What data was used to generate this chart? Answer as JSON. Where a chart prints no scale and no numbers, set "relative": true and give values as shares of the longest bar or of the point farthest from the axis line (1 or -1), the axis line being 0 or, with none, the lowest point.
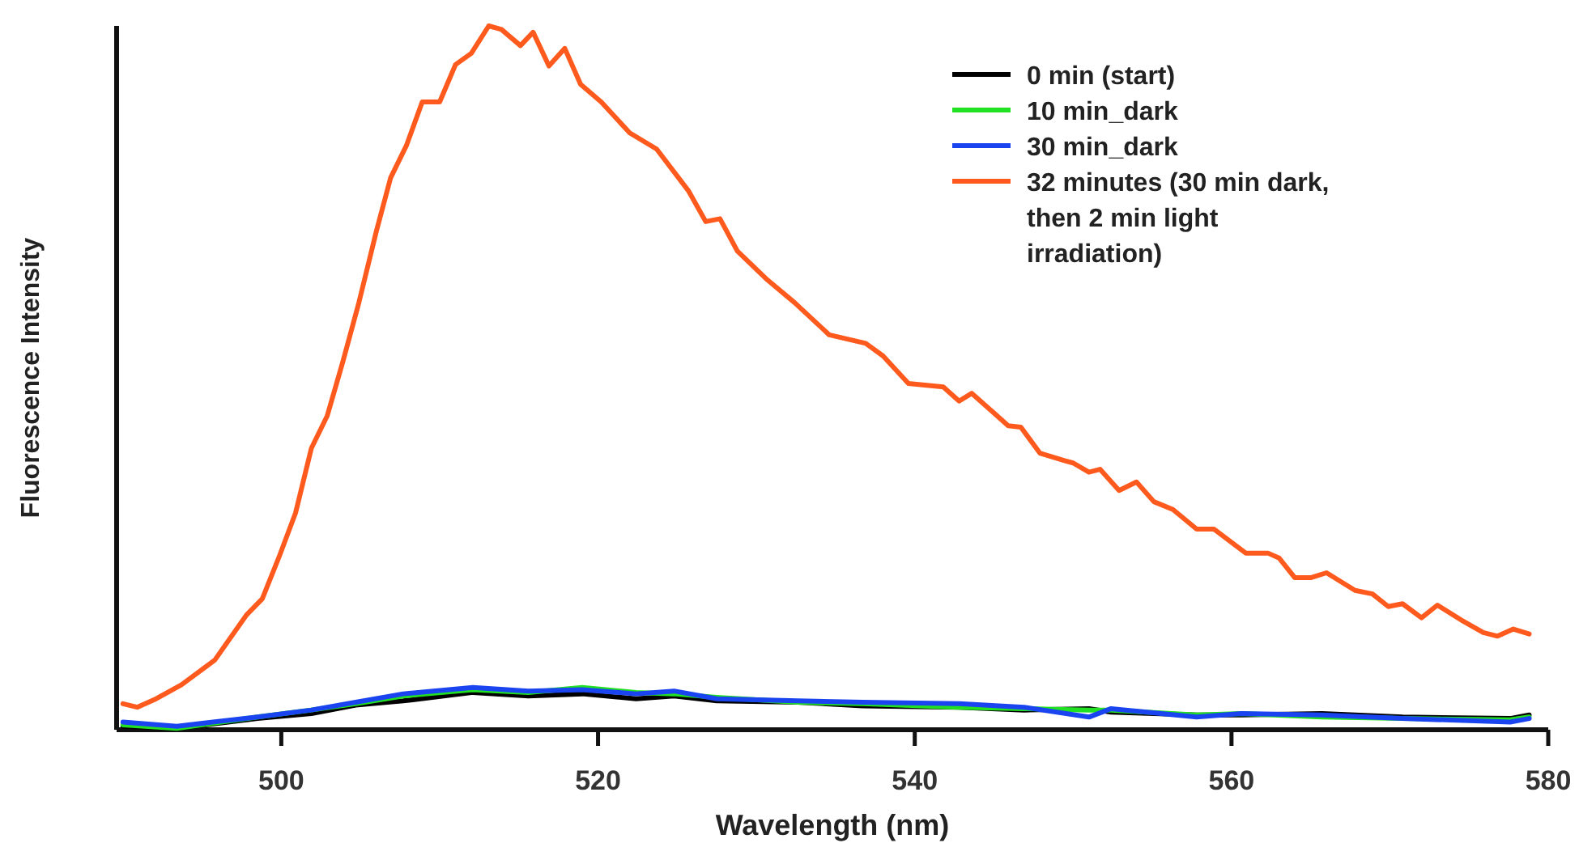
{
  "chart_data": {
    "type": "line",
    "relative": true,
    "xlabel": "Wavelength (nm)",
    "ylabel": "Fluorescence Intensity",
    "xlim": [
      489.6,
      580
    ],
    "xticks": [
      500,
      520,
      540,
      560,
      580
    ],
    "legend": "top right",
    "grid": false,
    "marker": "none",
    "line_style": "solid",
    "series": [
      {
        "name": "0 min (start)",
        "color": "#000000",
        "x": [
          490.0,
          493.4,
          498.5,
          501.9,
          504.7,
          507.7,
          512.1,
          515.6,
          519.0,
          522.4,
          524.8,
          527.5,
          532.6,
          536.7,
          542.8,
          546.9,
          551.0,
          552.4,
          557.8,
          560.6,
          565.7,
          570.8,
          577.6,
          578.8
        ],
        "values": [
          0.005,
          0.002,
          0.016,
          0.023,
          0.035,
          0.041,
          0.053,
          0.048,
          0.051,
          0.044,
          0.048,
          0.041,
          0.039,
          0.034,
          0.032,
          0.028,
          0.03,
          0.025,
          0.021,
          0.021,
          0.023,
          0.018,
          0.016,
          0.021
        ]
      },
      {
        "name": "10 min_dark",
        "color": "#22e022",
        "x": [
          490.0,
          493.4,
          498.5,
          501.9,
          504.7,
          507.7,
          512.1,
          515.6,
          519.0,
          522.4,
          524.8,
          527.5,
          532.6,
          536.7,
          542.8,
          546.9,
          551.0,
          552.4,
          557.8,
          560.6,
          565.7,
          570.8,
          577.6,
          578.8
        ],
        "values": [
          0.007,
          0.002,
          0.018,
          0.028,
          0.037,
          0.048,
          0.057,
          0.053,
          0.06,
          0.053,
          0.051,
          0.046,
          0.039,
          0.037,
          0.032,
          0.03,
          0.028,
          0.028,
          0.021,
          0.023,
          0.018,
          0.016,
          0.014,
          0.018
        ]
      },
      {
        "name": "30 min_dark",
        "color": "#1a44f0",
        "x": [
          490.0,
          493.4,
          498.5,
          501.9,
          504.7,
          507.7,
          512.1,
          515.6,
          519.0,
          522.4,
          524.8,
          527.5,
          532.6,
          536.7,
          542.8,
          546.9,
          551.0,
          552.4,
          557.8,
          560.6,
          565.7,
          570.8,
          577.6,
          578.8
        ],
        "values": [
          0.011,
          0.005,
          0.018,
          0.028,
          0.039,
          0.051,
          0.06,
          0.055,
          0.057,
          0.051,
          0.055,
          0.044,
          0.041,
          0.039,
          0.037,
          0.032,
          0.018,
          0.03,
          0.018,
          0.023,
          0.021,
          0.016,
          0.011,
          0.016
        ]
      },
      {
        "name": "32 minutes (30 min dark, then 2 min light irradiation)",
        "color": "#ff5a1e",
        "x": [
          490.0,
          490.9,
          492.1,
          493.7,
          495.8,
          497.8,
          498.8,
          499.9,
          500.9,
          501.9,
          502.9,
          503.9,
          504.9,
          506.0,
          506.9,
          507.9,
          508.9,
          510.0,
          511.0,
          512.0,
          513.1,
          513.9,
          515.1,
          515.9,
          516.9,
          517.9,
          518.9,
          520.2,
          522.0,
          523.7,
          525.7,
          526.8,
          527.7,
          528.8,
          530.7,
          532.4,
          534.6,
          536.9,
          538.0,
          539.6,
          541.8,
          542.8,
          543.6,
          545.9,
          546.7,
          547.9,
          549.5,
          550.0,
          551.0,
          551.7,
          552.9,
          554.0,
          555.1,
          556.3,
          557.8,
          558.9,
          560.9,
          562.3,
          563.0,
          564.0,
          565.0,
          566.0,
          567.8,
          568.9,
          569.9,
          570.8,
          572.0,
          573.0,
          574.5,
          575.9,
          576.8,
          577.8,
          578.8
        ],
        "values": [
          0.037,
          0.032,
          0.044,
          0.064,
          0.099,
          0.163,
          0.186,
          0.248,
          0.308,
          0.4,
          0.446,
          0.524,
          0.607,
          0.708,
          0.784,
          0.83,
          0.892,
          0.892,
          0.945,
          0.961,
          1,
          0.995,
          0.972,
          0.991,
          0.943,
          0.968,
          0.917,
          0.892,
          0.848,
          0.825,
          0.766,
          0.722,
          0.726,
          0.68,
          0.639,
          0.607,
          0.561,
          0.549,
          0.531,
          0.492,
          0.487,
          0.467,
          0.478,
          0.432,
          0.43,
          0.393,
          0.382,
          0.379,
          0.366,
          0.37,
          0.34,
          0.352,
          0.324,
          0.313,
          0.285,
          0.285,
          0.251,
          0.251,
          0.244,
          0.216,
          0.216,
          0.223,
          0.198,
          0.193,
          0.175,
          0.179,
          0.159,
          0.177,
          0.156,
          0.138,
          0.133,
          0.143,
          0.136
        ]
      }
    ]
  }
}
